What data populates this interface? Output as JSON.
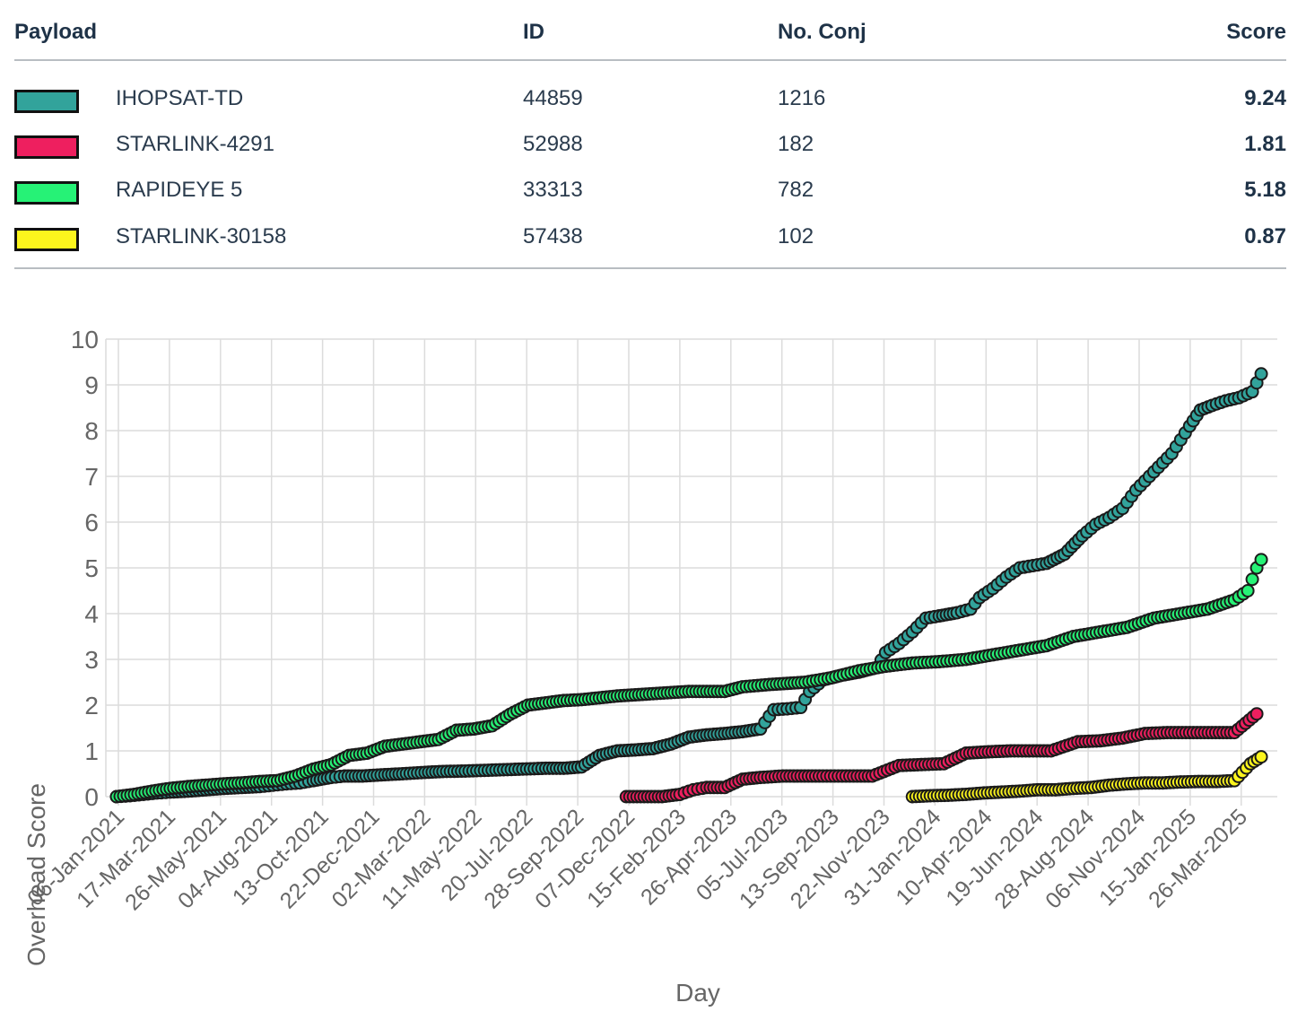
{
  "table": {
    "headers": {
      "payload": "Payload",
      "id": "ID",
      "conj": "No. Conj",
      "score": "Score"
    },
    "rows": [
      {
        "name": "IHOPSAT-TD",
        "id": "44859",
        "conj": "1216",
        "score": "9.24",
        "color": "#32a39b"
      },
      {
        "name": "STARLINK-4291",
        "id": "52988",
        "conj": "182",
        "score": "1.81",
        "color": "#ee1f5f"
      },
      {
        "name": "RAPIDEYE 5",
        "id": "33313",
        "conj": "782",
        "score": "5.18",
        "color": "#26f276"
      },
      {
        "name": "STARLINK-30158",
        "id": "57438",
        "conj": "102",
        "score": "0.87",
        "color": "#fcf51d"
      }
    ]
  },
  "chart_data": {
    "type": "scatter",
    "title": "",
    "xlabel": "Day",
    "ylabel": "Overhead Score",
    "ylim": [
      0,
      10
    ],
    "yticks": [
      0,
      1,
      2,
      3,
      4,
      5,
      6,
      7,
      8,
      9,
      10
    ],
    "xlim": [
      "06-Jan-2021",
      "10-May-2025"
    ],
    "xticks": [
      "06-Jan-2021",
      "17-Mar-2021",
      "26-May-2021",
      "04-Aug-2021",
      "13-Oct-2021",
      "22-Dec-2021",
      "02-Mar-2022",
      "11-May-2022",
      "20-Jul-2022",
      "28-Sep-2022",
      "07-Dec-2022",
      "15-Feb-2023",
      "26-Apr-2023",
      "05-Jul-2023",
      "13-Sep-2023",
      "22-Nov-2023",
      "31-Jan-2024",
      "10-Apr-2024",
      "19-Jun-2024",
      "28-Aug-2024",
      "06-Nov-2024",
      "15-Jan-2025",
      "26-Mar-2025"
    ],
    "grid": true,
    "series": [
      {
        "name": "IHOPSAT-TD",
        "color": "#32a39b",
        "points": [
          [
            0,
            0
          ],
          [
            15,
            0.02
          ],
          [
            30,
            0.05
          ],
          [
            45,
            0.08
          ],
          [
            60,
            0.1
          ],
          [
            80,
            0.12
          ],
          [
            100,
            0.15
          ],
          [
            120,
            0.18
          ],
          [
            140,
            0.2
          ],
          [
            160,
            0.22
          ],
          [
            175,
            0.25
          ],
          [
            190,
            0.28
          ],
          [
            205,
            0.3
          ],
          [
            220,
            0.35
          ],
          [
            240,
            0.42
          ],
          [
            255,
            0.45
          ],
          [
            275,
            0.45
          ],
          [
            300,
            0.48
          ],
          [
            320,
            0.5
          ],
          [
            345,
            0.53
          ],
          [
            365,
            0.55
          ],
          [
            390,
            0.56
          ],
          [
            420,
            0.58
          ],
          [
            450,
            0.6
          ],
          [
            480,
            0.62
          ],
          [
            500,
            0.62
          ],
          [
            520,
            0.65
          ],
          [
            540,
            0.9
          ],
          [
            560,
            1.0
          ],
          [
            580,
            1.02
          ],
          [
            600,
            1.05
          ],
          [
            620,
            1.15
          ],
          [
            640,
            1.3
          ],
          [
            660,
            1.35
          ],
          [
            680,
            1.38
          ],
          [
            700,
            1.42
          ],
          [
            720,
            1.48
          ],
          [
            735,
            1.9
          ],
          [
            750,
            1.92
          ],
          [
            765,
            1.95
          ],
          [
            775,
            2.3
          ],
          [
            790,
            2.55
          ],
          [
            810,
            2.65
          ],
          [
            830,
            2.72
          ],
          [
            850,
            2.82
          ],
          [
            860,
            3.15
          ],
          [
            875,
            3.35
          ],
          [
            890,
            3.6
          ],
          [
            905,
            3.9
          ],
          [
            920,
            3.95
          ],
          [
            940,
            4.02
          ],
          [
            955,
            4.1
          ],
          [
            965,
            4.35
          ],
          [
            980,
            4.55
          ],
          [
            995,
            4.8
          ],
          [
            1010,
            5.0
          ],
          [
            1025,
            5.05
          ],
          [
            1040,
            5.1
          ],
          [
            1060,
            5.3
          ],
          [
            1080,
            5.7
          ],
          [
            1095,
            5.95
          ],
          [
            1110,
            6.1
          ],
          [
            1125,
            6.3
          ],
          [
            1140,
            6.7
          ],
          [
            1155,
            7.0
          ],
          [
            1170,
            7.3
          ],
          [
            1180,
            7.5
          ],
          [
            1190,
            7.8
          ],
          [
            1200,
            8.1
          ],
          [
            1212,
            8.45
          ],
          [
            1225,
            8.55
          ],
          [
            1240,
            8.65
          ],
          [
            1255,
            8.72
          ],
          [
            1270,
            8.85
          ],
          [
            1280,
            9.24
          ]
        ]
      },
      {
        "name": "STARLINK-4291",
        "color": "#ee1f5f",
        "points": [
          [
            570,
            0
          ],
          [
            590,
            0
          ],
          [
            610,
            0
          ],
          [
            630,
            0.05
          ],
          [
            645,
            0.15
          ],
          [
            660,
            0.2
          ],
          [
            680,
            0.2
          ],
          [
            700,
            0.38
          ],
          [
            720,
            0.42
          ],
          [
            745,
            0.45
          ],
          [
            790,
            0.45
          ],
          [
            820,
            0.45
          ],
          [
            845,
            0.45
          ],
          [
            875,
            0.68
          ],
          [
            900,
            0.7
          ],
          [
            925,
            0.72
          ],
          [
            950,
            0.95
          ],
          [
            975,
            0.98
          ],
          [
            1000,
            1.0
          ],
          [
            1025,
            1.0
          ],
          [
            1045,
            1.0
          ],
          [
            1075,
            1.2
          ],
          [
            1100,
            1.22
          ],
          [
            1125,
            1.28
          ],
          [
            1150,
            1.38
          ],
          [
            1175,
            1.4
          ],
          [
            1200,
            1.4
          ],
          [
            1225,
            1.4
          ],
          [
            1250,
            1.4
          ],
          [
            1275,
            1.81
          ]
        ]
      },
      {
        "name": "RAPIDEYE 5",
        "color": "#26f276",
        "points": [
          [
            0,
            0
          ],
          [
            20,
            0.05
          ],
          [
            40,
            0.12
          ],
          [
            60,
            0.18
          ],
          [
            80,
            0.22
          ],
          [
            100,
            0.25
          ],
          [
            120,
            0.28
          ],
          [
            140,
            0.3
          ],
          [
            160,
            0.33
          ],
          [
            180,
            0.35
          ],
          [
            200,
            0.45
          ],
          [
            220,
            0.6
          ],
          [
            240,
            0.7
          ],
          [
            260,
            0.9
          ],
          [
            280,
            0.95
          ],
          [
            300,
            1.1
          ],
          [
            320,
            1.15
          ],
          [
            340,
            1.2
          ],
          [
            360,
            1.25
          ],
          [
            380,
            1.45
          ],
          [
            400,
            1.48
          ],
          [
            420,
            1.55
          ],
          [
            440,
            1.8
          ],
          [
            460,
            2.0
          ],
          [
            480,
            2.05
          ],
          [
            500,
            2.1
          ],
          [
            520,
            2.12
          ],
          [
            560,
            2.2
          ],
          [
            600,
            2.25
          ],
          [
            640,
            2.3
          ],
          [
            680,
            2.3
          ],
          [
            700,
            2.4
          ],
          [
            730,
            2.45
          ],
          [
            770,
            2.5
          ],
          [
            800,
            2.6
          ],
          [
            830,
            2.75
          ],
          [
            860,
            2.85
          ],
          [
            890,
            2.92
          ],
          [
            920,
            2.95
          ],
          [
            950,
            3.0
          ],
          [
            980,
            3.1
          ],
          [
            1010,
            3.2
          ],
          [
            1040,
            3.3
          ],
          [
            1070,
            3.5
          ],
          [
            1100,
            3.6
          ],
          [
            1130,
            3.7
          ],
          [
            1160,
            3.9
          ],
          [
            1190,
            4.0
          ],
          [
            1220,
            4.1
          ],
          [
            1250,
            4.3
          ],
          [
            1265,
            4.5
          ],
          [
            1275,
            5.0
          ],
          [
            1280,
            5.18
          ]
        ]
      },
      {
        "name": "STARLINK-30158",
        "color": "#fcf51d",
        "points": [
          [
            890,
            0
          ],
          [
            910,
            0.02
          ],
          [
            930,
            0.03
          ],
          [
            950,
            0.05
          ],
          [
            970,
            0.08
          ],
          [
            990,
            0.1
          ],
          [
            1010,
            0.12
          ],
          [
            1030,
            0.15
          ],
          [
            1050,
            0.15
          ],
          [
            1070,
            0.18
          ],
          [
            1090,
            0.2
          ],
          [
            1110,
            0.25
          ],
          [
            1130,
            0.28
          ],
          [
            1150,
            0.3
          ],
          [
            1170,
            0.3
          ],
          [
            1190,
            0.32
          ],
          [
            1210,
            0.33
          ],
          [
            1230,
            0.33
          ],
          [
            1250,
            0.35
          ],
          [
            1268,
            0.72
          ],
          [
            1280,
            0.87
          ]
        ]
      }
    ]
  }
}
